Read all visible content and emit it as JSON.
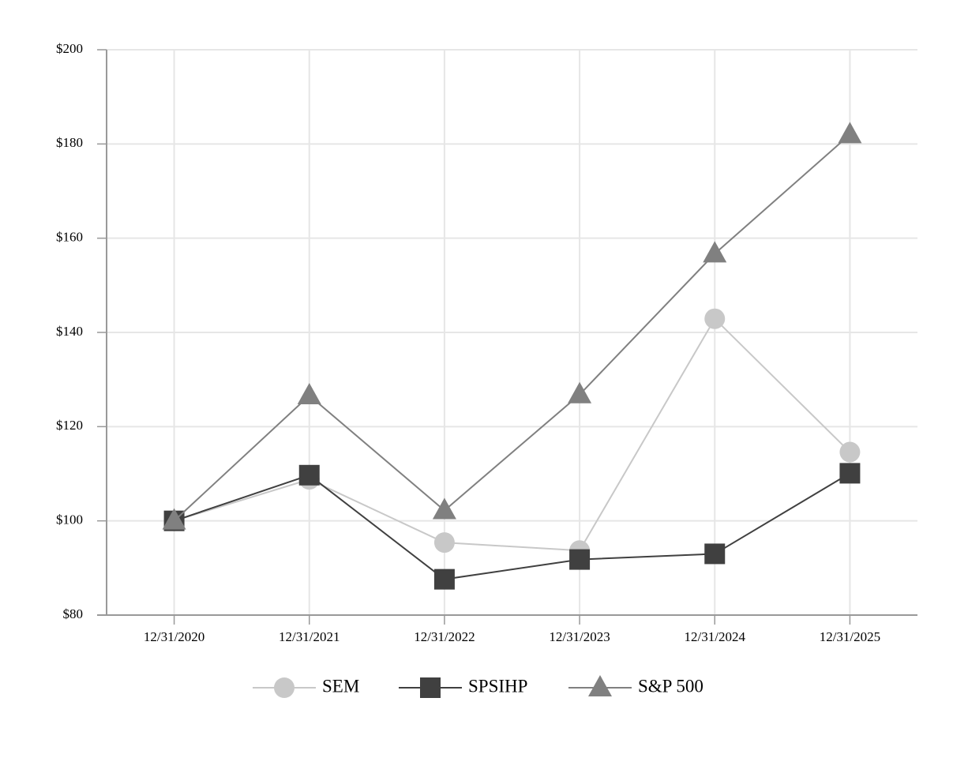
{
  "chart_data": {
    "type": "line",
    "categories": [
      "12/31/2020",
      "12/31/2021",
      "12/31/2022",
      "12/31/2023",
      "12/31/2024",
      "12/31/2025"
    ],
    "series": [
      {
        "name": "SEM",
        "color": "#c8c8c8",
        "marker": "circle",
        "values": [
          100,
          108.8,
          95.4,
          93.7,
          142.9,
          114.6
        ]
      },
      {
        "name": "SPSIHP",
        "color": "#404040",
        "marker": "square",
        "values": [
          100,
          109.7,
          87.6,
          91.8,
          93.0,
          110.1
        ]
      },
      {
        "name": "S&P 500",
        "color": "#808080",
        "marker": "triangle",
        "values": [
          100,
          126.6,
          102.2,
          126.8,
          156.7,
          182.0
        ]
      }
    ],
    "ylim": [
      80,
      200
    ],
    "yticks": [
      {
        "value": 80,
        "label": "$80"
      },
      {
        "value": 100,
        "label": "$100"
      },
      {
        "value": 120,
        "label": "$120"
      },
      {
        "value": 140,
        "label": "$140"
      },
      {
        "value": 160,
        "label": "$160"
      },
      {
        "value": 180,
        "label": "$180"
      },
      {
        "value": 200,
        "label": "$200"
      }
    ],
    "grid": true,
    "legend": "bottom"
  }
}
